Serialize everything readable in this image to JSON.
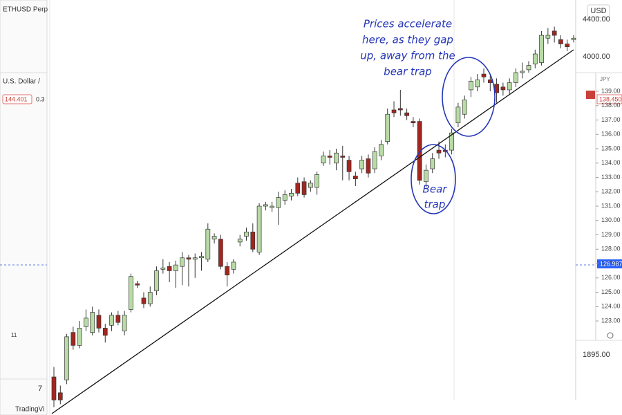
{
  "chart_data": {
    "type": "candlestick",
    "annotations": [
      "Prices accelerate",
      "here, as they gap",
      "up, away from the",
      "bear trap",
      "Bear",
      "trap"
    ],
    "labels": {
      "symbol": "ETHUSD Perp",
      "currency": "USD",
      "price_high": "4400.00",
      "price_mid": "4000.00",
      "price_low": "1895.00",
      "pair": "U.S. Dollar /",
      "pair_price": "144.401",
      "pair_change": "0.3",
      "axis_currency": "JPY",
      "last_price": "138.450",
      "line_price": "126.987",
      "left_number": "7",
      "left_date": "11",
      "brand": "TradingVi"
    },
    "up_color": "#b8dba5",
    "down_color": "#a3261e",
    "ylim": [
      116.45,
      145.36
    ],
    "yticks": [
      {
        "value": 123,
        "label": "123.00"
      },
      {
        "value": 124,
        "label": "124.00"
      },
      {
        "value": 125,
        "label": "125.00"
      },
      {
        "value": 126,
        "label": "126.00"
      },
      {
        "value": 127,
        "label": "127.00"
      },
      {
        "value": 128,
        "label": "128.00"
      },
      {
        "value": 129,
        "label": "129.00"
      },
      {
        "value": 130,
        "label": "130.00"
      },
      {
        "value": 131,
        "label": "131.00"
      },
      {
        "value": 132,
        "label": "132.00"
      },
      {
        "value": 133,
        "label": "133.00"
      },
      {
        "value": 134,
        "label": "134.00"
      },
      {
        "value": 135,
        "label": "135.00"
      },
      {
        "value": 136,
        "label": "136.00"
      },
      {
        "value": 137,
        "label": "137.00"
      },
      {
        "value": 138,
        "label": "138.00"
      },
      {
        "value": 139,
        "label": "139.00"
      }
    ],
    "open": [
      119.1,
      118.0,
      118.9,
      122.2,
      121.3,
      122.6,
      122.2,
      123.4,
      122.5,
      122.7,
      123.4,
      122.3,
      123.8,
      125.6,
      124.6,
      124.2,
      125.1,
      126.6,
      126.8,
      126.5,
      126.8,
      127.4,
      127.3,
      127.4,
      127.3,
      128.7,
      128.7,
      126.8,
      126.6,
      128.5,
      128.9,
      129.2,
      127.8,
      131.0,
      130.9,
      130.9,
      131.4,
      131.7,
      132.6,
      132.7,
      132.3,
      132.3,
      134.0,
      134.5,
      134.0,
      134.5,
      134.2,
      133.1,
      133.6,
      134.3,
      133.6,
      134.5,
      135.5,
      137.7,
      137.8,
      137.5,
      136.9,
      136.9,
      132.7,
      133.6,
      134.9,
      134.9,
      134.9,
      136.8,
      137.4,
      139.1,
      139.3,
      140.2,
      139.8,
      139.5,
      139.3,
      139.1,
      139.6,
      140.3,
      140.5,
      140.9,
      141.0,
      142.7,
      143.2,
      142.6,
      142.3,
      142.6
    ],
    "high": [
      119.8,
      118.5,
      122.1,
      122.6,
      123.0,
      123.8,
      124.0,
      123.8,
      122.8,
      123.6,
      123.7,
      123.7,
      126.3,
      125.8,
      125.0,
      125.4,
      126.8,
      127.3,
      127.1,
      127.2,
      127.8,
      127.6,
      127.7,
      127.8,
      129.8,
      129.1,
      129.0,
      127.1,
      127.3,
      129.0,
      129.5,
      129.8,
      131.2,
      131.3,
      131.3,
      132.0,
      132.1,
      132.2,
      133.0,
      133.0,
      132.8,
      133.4,
      134.8,
      134.9,
      135.0,
      135.2,
      134.5,
      133.4,
      134.5,
      134.6,
      135.1,
      135.6,
      137.8,
      138.3,
      139.1,
      137.8,
      137.2,
      137.1,
      133.9,
      134.7,
      135.5,
      135.3,
      136.4,
      138.2,
      138.7,
      140.0,
      140.2,
      140.6,
      140.1,
      139.9,
      139.6,
      139.9,
      140.6,
      141.0,
      141.1,
      141.9,
      143.2,
      143.4,
      143.5,
      142.9,
      142.6,
      142.9
    ],
    "low": [
      117.0,
      117.2,
      118.6,
      121.0,
      121.1,
      122.3,
      122.0,
      122.2,
      121.5,
      122.3,
      122.7,
      122.0,
      123.6,
      125.3,
      123.9,
      124.0,
      124.8,
      126.3,
      125.7,
      125.3,
      125.5,
      125.4,
      126.0,
      126.5,
      127.1,
      128.4,
      126.6,
      125.4,
      126.3,
      128.2,
      128.6,
      127.8,
      127.6,
      130.7,
      130.6,
      129.7,
      131.1,
      131.4,
      131.7,
      131.6,
      132.0,
      131.8,
      133.8,
      133.9,
      133.5,
      132.8,
      132.8,
      132.4,
      133.3,
      133.0,
      133.3,
      134.2,
      135.3,
      137.2,
      137.3,
      137.0,
      136.5,
      132.5,
      132.3,
      133.3,
      134.3,
      134.4,
      134.6,
      136.5,
      137.1,
      138.6,
      139.0,
      139.6,
      139.0,
      138.2,
      138.7,
      138.8,
      139.3,
      139.9,
      140.3,
      140.6,
      140.8,
      142.3,
      142.4,
      142.0,
      141.8,
      142.4
    ],
    "close": [
      117.5,
      117.5,
      121.9,
      121.3,
      122.5,
      123.2,
      123.6,
      122.5,
      122.0,
      123.4,
      122.9,
      123.4,
      126.1,
      125.5,
      124.2,
      125.0,
      126.5,
      126.7,
      126.5,
      126.9,
      127.4,
      127.3,
      127.4,
      127.5,
      129.4,
      128.9,
      126.8,
      126.2,
      127.1,
      128.7,
      129.2,
      128.0,
      131.0,
      131.1,
      131.0,
      131.6,
      131.8,
      131.9,
      131.9,
      131.8,
      132.6,
      133.2,
      134.5,
      134.4,
      134.7,
      134.4,
      133.4,
      132.9,
      134.2,
      133.3,
      134.8,
      135.3,
      137.4,
      137.5,
      137.7,
      137.3,
      136.8,
      132.8,
      133.5,
      134.3,
      134.7,
      134.8,
      136.1,
      137.9,
      138.4,
      139.7,
      139.8,
      140.0,
      139.6,
      138.9,
      139.1,
      139.6,
      140.3,
      140.4,
      140.8,
      141.6,
      142.9,
      142.9,
      142.9,
      142.3,
      142.1,
      142.7
    ]
  }
}
